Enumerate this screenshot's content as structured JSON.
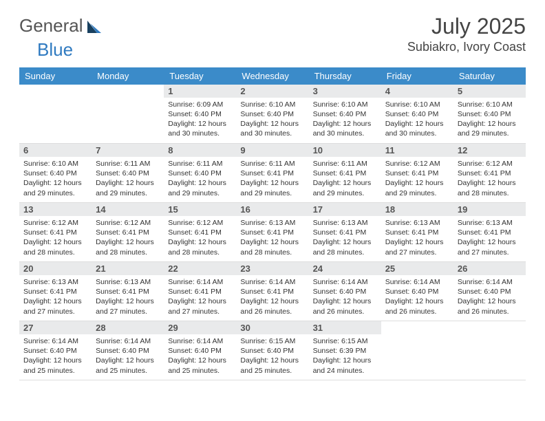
{
  "brand": {
    "part1": "General",
    "part2": "Blue"
  },
  "title": "July 2025",
  "location": "Subiakro, Ivory Coast",
  "colors": {
    "header_bg": "#3b8bc9",
    "header_text": "#ffffff",
    "daynum_bg": "#e9eaeb",
    "text": "#333333",
    "brand_gray": "#555555",
    "brand_blue": "#2f7ac0"
  },
  "weekdays": [
    "Sunday",
    "Monday",
    "Tuesday",
    "Wednesday",
    "Thursday",
    "Friday",
    "Saturday"
  ],
  "weeks": [
    [
      {
        "n": "",
        "rise": "",
        "set": "",
        "day": ""
      },
      {
        "n": "",
        "rise": "",
        "set": "",
        "day": ""
      },
      {
        "n": "1",
        "rise": "Sunrise: 6:09 AM",
        "set": "Sunset: 6:40 PM",
        "day": "Daylight: 12 hours and 30 minutes."
      },
      {
        "n": "2",
        "rise": "Sunrise: 6:10 AM",
        "set": "Sunset: 6:40 PM",
        "day": "Daylight: 12 hours and 30 minutes."
      },
      {
        "n": "3",
        "rise": "Sunrise: 6:10 AM",
        "set": "Sunset: 6:40 PM",
        "day": "Daylight: 12 hours and 30 minutes."
      },
      {
        "n": "4",
        "rise": "Sunrise: 6:10 AM",
        "set": "Sunset: 6:40 PM",
        "day": "Daylight: 12 hours and 30 minutes."
      },
      {
        "n": "5",
        "rise": "Sunrise: 6:10 AM",
        "set": "Sunset: 6:40 PM",
        "day": "Daylight: 12 hours and 29 minutes."
      }
    ],
    [
      {
        "n": "6",
        "rise": "Sunrise: 6:10 AM",
        "set": "Sunset: 6:40 PM",
        "day": "Daylight: 12 hours and 29 minutes."
      },
      {
        "n": "7",
        "rise": "Sunrise: 6:11 AM",
        "set": "Sunset: 6:40 PM",
        "day": "Daylight: 12 hours and 29 minutes."
      },
      {
        "n": "8",
        "rise": "Sunrise: 6:11 AM",
        "set": "Sunset: 6:40 PM",
        "day": "Daylight: 12 hours and 29 minutes."
      },
      {
        "n": "9",
        "rise": "Sunrise: 6:11 AM",
        "set": "Sunset: 6:41 PM",
        "day": "Daylight: 12 hours and 29 minutes."
      },
      {
        "n": "10",
        "rise": "Sunrise: 6:11 AM",
        "set": "Sunset: 6:41 PM",
        "day": "Daylight: 12 hours and 29 minutes."
      },
      {
        "n": "11",
        "rise": "Sunrise: 6:12 AM",
        "set": "Sunset: 6:41 PM",
        "day": "Daylight: 12 hours and 29 minutes."
      },
      {
        "n": "12",
        "rise": "Sunrise: 6:12 AM",
        "set": "Sunset: 6:41 PM",
        "day": "Daylight: 12 hours and 28 minutes."
      }
    ],
    [
      {
        "n": "13",
        "rise": "Sunrise: 6:12 AM",
        "set": "Sunset: 6:41 PM",
        "day": "Daylight: 12 hours and 28 minutes."
      },
      {
        "n": "14",
        "rise": "Sunrise: 6:12 AM",
        "set": "Sunset: 6:41 PM",
        "day": "Daylight: 12 hours and 28 minutes."
      },
      {
        "n": "15",
        "rise": "Sunrise: 6:12 AM",
        "set": "Sunset: 6:41 PM",
        "day": "Daylight: 12 hours and 28 minutes."
      },
      {
        "n": "16",
        "rise": "Sunrise: 6:13 AM",
        "set": "Sunset: 6:41 PM",
        "day": "Daylight: 12 hours and 28 minutes."
      },
      {
        "n": "17",
        "rise": "Sunrise: 6:13 AM",
        "set": "Sunset: 6:41 PM",
        "day": "Daylight: 12 hours and 28 minutes."
      },
      {
        "n": "18",
        "rise": "Sunrise: 6:13 AM",
        "set": "Sunset: 6:41 PM",
        "day": "Daylight: 12 hours and 27 minutes."
      },
      {
        "n": "19",
        "rise": "Sunrise: 6:13 AM",
        "set": "Sunset: 6:41 PM",
        "day": "Daylight: 12 hours and 27 minutes."
      }
    ],
    [
      {
        "n": "20",
        "rise": "Sunrise: 6:13 AM",
        "set": "Sunset: 6:41 PM",
        "day": "Daylight: 12 hours and 27 minutes."
      },
      {
        "n": "21",
        "rise": "Sunrise: 6:13 AM",
        "set": "Sunset: 6:41 PM",
        "day": "Daylight: 12 hours and 27 minutes."
      },
      {
        "n": "22",
        "rise": "Sunrise: 6:14 AM",
        "set": "Sunset: 6:41 PM",
        "day": "Daylight: 12 hours and 27 minutes."
      },
      {
        "n": "23",
        "rise": "Sunrise: 6:14 AM",
        "set": "Sunset: 6:41 PM",
        "day": "Daylight: 12 hours and 26 minutes."
      },
      {
        "n": "24",
        "rise": "Sunrise: 6:14 AM",
        "set": "Sunset: 6:40 PM",
        "day": "Daylight: 12 hours and 26 minutes."
      },
      {
        "n": "25",
        "rise": "Sunrise: 6:14 AM",
        "set": "Sunset: 6:40 PM",
        "day": "Daylight: 12 hours and 26 minutes."
      },
      {
        "n": "26",
        "rise": "Sunrise: 6:14 AM",
        "set": "Sunset: 6:40 PM",
        "day": "Daylight: 12 hours and 26 minutes."
      }
    ],
    [
      {
        "n": "27",
        "rise": "Sunrise: 6:14 AM",
        "set": "Sunset: 6:40 PM",
        "day": "Daylight: 12 hours and 25 minutes."
      },
      {
        "n": "28",
        "rise": "Sunrise: 6:14 AM",
        "set": "Sunset: 6:40 PM",
        "day": "Daylight: 12 hours and 25 minutes."
      },
      {
        "n": "29",
        "rise": "Sunrise: 6:14 AM",
        "set": "Sunset: 6:40 PM",
        "day": "Daylight: 12 hours and 25 minutes."
      },
      {
        "n": "30",
        "rise": "Sunrise: 6:15 AM",
        "set": "Sunset: 6:40 PM",
        "day": "Daylight: 12 hours and 25 minutes."
      },
      {
        "n": "31",
        "rise": "Sunrise: 6:15 AM",
        "set": "Sunset: 6:39 PM",
        "day": "Daylight: 12 hours and 24 minutes."
      },
      {
        "n": "",
        "rise": "",
        "set": "",
        "day": ""
      },
      {
        "n": "",
        "rise": "",
        "set": "",
        "day": ""
      }
    ]
  ]
}
